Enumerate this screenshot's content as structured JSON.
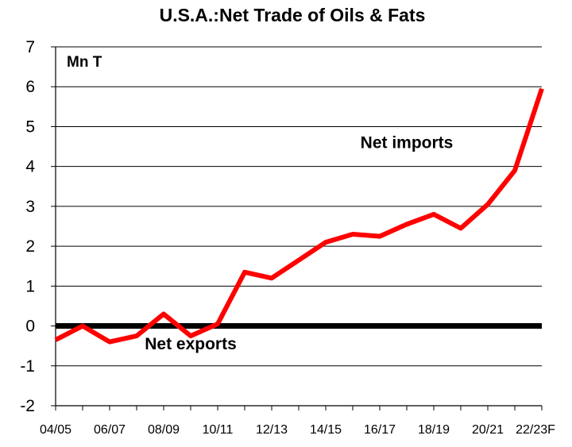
{
  "chart_data": {
    "type": "line",
    "title": "U.S.A.:Net Trade of Oils & Fats",
    "unit_label": "Mn T",
    "xlabel": "",
    "ylabel": "",
    "ylim": [
      -2,
      7
    ],
    "yticks": [
      7,
      6,
      5,
      4,
      3,
      2,
      1,
      0,
      -1,
      -2
    ],
    "x": [
      "04/05",
      "05/06",
      "06/07",
      "07/08",
      "08/09",
      "09/10",
      "10/11",
      "11/12",
      "12/13",
      "13/14",
      "14/15",
      "15/16",
      "16/17",
      "17/18",
      "18/19",
      "19/20",
      "20/21",
      "21/22",
      "22/23F"
    ],
    "x_tick_labels": [
      "04/05",
      "06/07",
      "08/09",
      "10/11",
      "12/13",
      "14/15",
      "16/17",
      "18/19",
      "20/21",
      "22/23F"
    ],
    "series": [
      {
        "color": "#ff0000",
        "values": [
          -0.35,
          0.0,
          -0.4,
          -0.25,
          0.3,
          -0.25,
          0.05,
          1.35,
          1.2,
          1.65,
          2.1,
          2.3,
          2.25,
          2.55,
          2.8,
          2.45,
          3.05,
          3.9,
          5.95
        ]
      }
    ],
    "zero_line": true,
    "grid": true,
    "annotations": [
      {
        "text": "Net imports",
        "x": "17/18",
        "y": 4.6
      },
      {
        "text": "Net exports",
        "x": "09/10",
        "y": -0.45
      }
    ]
  }
}
